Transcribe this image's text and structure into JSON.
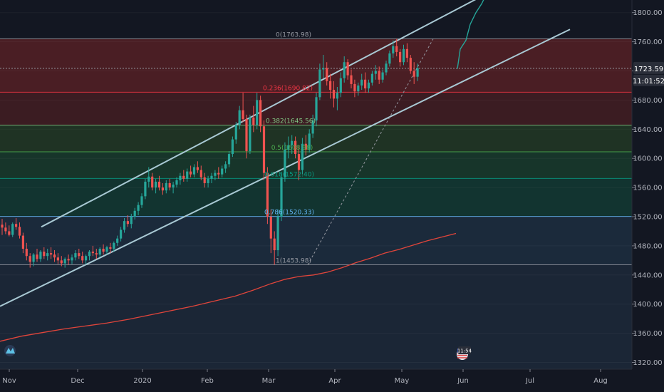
{
  "chart_data": {
    "type": "candlestick",
    "y_axis": {
      "range": [
        1310,
        1815
      ],
      "ticks": [
        1320,
        1360,
        1400,
        1440,
        1480,
        1520,
        1560,
        1600,
        1640,
        1680,
        1720,
        1760,
        1800
      ],
      "tick_labels": [
        "1320.00",
        "1360.00",
        "1400.00",
        "1440.00",
        "1480.00",
        "1520.00",
        "1560.00",
        "1600.00",
        "1640.00",
        "1680.00",
        "1720.00",
        "1760.00",
        "1800.00"
      ]
    },
    "x_axis": {
      "labels": [
        "Nov",
        "Dec",
        "2020",
        "Feb",
        "Mar",
        "Apr",
        "May",
        "Jun",
        "Jul",
        "Aug"
      ]
    },
    "fib_levels": [
      {
        "ratio": "0",
        "price": 1763.98,
        "label": "0(1763.98)",
        "color": "#9598a1"
      },
      {
        "ratio": "0.236",
        "price": 1690.82,
        "label": "0.236(1690.82)",
        "color": "#f23645"
      },
      {
        "ratio": "0.382",
        "price": 1645.56,
        "label": "0.382(1645.56)",
        "color": "#81c784"
      },
      {
        "ratio": "0.5",
        "price": 1608.98,
        "label": "0.5(1608.98)",
        "color": "#4caf50"
      },
      {
        "ratio": "0.618",
        "price": 1572.4,
        "label": "0.618(1572.40)",
        "color": "#089981"
      },
      {
        "ratio": "0.786",
        "price": 1520.33,
        "label": "0.786(1520.33)",
        "color": "#64b5f6"
      },
      {
        "ratio": "1",
        "price": 1453.98,
        "label": "1(1453.98)",
        "color": "#9598a1"
      }
    ],
    "current_price": {
      "label": "1723.59",
      "countdown": "11:01:52",
      "value": 1723.59
    },
    "ohlc": [
      [
        1509,
        1517,
        1495,
        1505
      ],
      [
        1505,
        1512,
        1496,
        1500
      ],
      [
        1500,
        1508,
        1493,
        1495
      ],
      [
        1495,
        1512,
        1492,
        1510
      ],
      [
        1510,
        1518,
        1502,
        1506
      ],
      [
        1506,
        1512,
        1490,
        1494
      ],
      [
        1494,
        1498,
        1470,
        1476
      ],
      [
        1476,
        1484,
        1460,
        1466
      ],
      [
        1466,
        1470,
        1450,
        1458
      ],
      [
        1458,
        1470,
        1452,
        1468
      ],
      [
        1468,
        1476,
        1458,
        1462
      ],
      [
        1462,
        1474,
        1458,
        1472
      ],
      [
        1472,
        1478,
        1462,
        1466
      ],
      [
        1466,
        1476,
        1460,
        1470
      ],
      [
        1470,
        1478,
        1462,
        1468
      ],
      [
        1468,
        1474,
        1458,
        1464
      ],
      [
        1464,
        1470,
        1455,
        1460
      ],
      [
        1460,
        1466,
        1452,
        1456
      ],
      [
        1456,
        1464,
        1450,
        1462
      ],
      [
        1462,
        1468,
        1454,
        1460
      ],
      [
        1460,
        1468,
        1455,
        1464
      ],
      [
        1464,
        1474,
        1460,
        1470
      ],
      [
        1470,
        1476,
        1462,
        1466
      ],
      [
        1466,
        1472,
        1456,
        1460
      ],
      [
        1460,
        1468,
        1455,
        1466
      ],
      [
        1466,
        1474,
        1460,
        1472
      ],
      [
        1472,
        1480,
        1466,
        1470
      ],
      [
        1470,
        1476,
        1462,
        1468
      ],
      [
        1468,
        1478,
        1464,
        1476
      ],
      [
        1476,
        1482,
        1468,
        1472
      ],
      [
        1472,
        1480,
        1468,
        1478
      ],
      [
        1478,
        1484,
        1470,
        1476
      ],
      [
        1476,
        1486,
        1472,
        1484
      ],
      [
        1484,
        1494,
        1480,
        1490
      ],
      [
        1490,
        1506,
        1486,
        1502
      ],
      [
        1502,
        1518,
        1498,
        1514
      ],
      [
        1514,
        1522,
        1506,
        1510
      ],
      [
        1510,
        1524,
        1504,
        1520
      ],
      [
        1520,
        1532,
        1516,
        1528
      ],
      [
        1528,
        1540,
        1522,
        1536
      ],
      [
        1536,
        1552,
        1532,
        1548
      ],
      [
        1548,
        1572,
        1544,
        1568
      ],
      [
        1568,
        1588,
        1560,
        1575
      ],
      [
        1575,
        1580,
        1556,
        1560
      ],
      [
        1560,
        1572,
        1552,
        1568
      ],
      [
        1568,
        1576,
        1556,
        1560
      ],
      [
        1560,
        1566,
        1550,
        1556
      ],
      [
        1556,
        1570,
        1552,
        1566
      ],
      [
        1566,
        1572,
        1556,
        1560
      ],
      [
        1560,
        1568,
        1552,
        1564
      ],
      [
        1564,
        1574,
        1560,
        1570
      ],
      [
        1570,
        1580,
        1564,
        1576
      ],
      [
        1576,
        1584,
        1568,
        1572
      ],
      [
        1572,
        1586,
        1568,
        1582
      ],
      [
        1582,
        1590,
        1574,
        1578
      ],
      [
        1578,
        1592,
        1574,
        1588
      ],
      [
        1588,
        1596,
        1580,
        1584
      ],
      [
        1584,
        1590,
        1570,
        1574
      ],
      [
        1574,
        1580,
        1560,
        1566
      ],
      [
        1566,
        1576,
        1560,
        1572
      ],
      [
        1572,
        1580,
        1566,
        1576
      ],
      [
        1576,
        1584,
        1570,
        1580
      ],
      [
        1580,
        1588,
        1572,
        1578
      ],
      [
        1578,
        1590,
        1574,
        1586
      ],
      [
        1586,
        1596,
        1580,
        1592
      ],
      [
        1592,
        1610,
        1588,
        1606
      ],
      [
        1606,
        1630,
        1602,
        1626
      ],
      [
        1626,
        1650,
        1620,
        1646
      ],
      [
        1646,
        1672,
        1640,
        1666
      ],
      [
        1666,
        1690,
        1650,
        1654
      ],
      [
        1654,
        1660,
        1600,
        1610
      ],
      [
        1610,
        1660,
        1606,
        1656
      ],
      [
        1656,
        1672,
        1636,
        1646
      ],
      [
        1646,
        1690,
        1640,
        1680
      ],
      [
        1680,
        1686,
        1636,
        1644
      ],
      [
        1644,
        1652,
        1570,
        1580
      ],
      [
        1580,
        1588,
        1510,
        1520
      ],
      [
        1520,
        1530,
        1470,
        1490
      ],
      [
        1490,
        1500,
        1454,
        1474
      ],
      [
        1474,
        1530,
        1466,
        1520
      ],
      [
        1520,
        1580,
        1514,
        1574
      ],
      [
        1574,
        1622,
        1568,
        1612
      ],
      [
        1612,
        1630,
        1600,
        1618
      ],
      [
        1618,
        1632,
        1606,
        1624
      ],
      [
        1624,
        1630,
        1600,
        1606
      ],
      [
        1606,
        1618,
        1570,
        1584
      ],
      [
        1584,
        1628,
        1578,
        1620
      ],
      [
        1620,
        1632,
        1604,
        1612
      ],
      [
        1612,
        1640,
        1608,
        1634
      ],
      [
        1634,
        1660,
        1628,
        1652
      ],
      [
        1652,
        1690,
        1644,
        1684
      ],
      [
        1684,
        1730,
        1680,
        1722
      ],
      [
        1722,
        1742,
        1710,
        1724
      ],
      [
        1724,
        1732,
        1700,
        1706
      ],
      [
        1706,
        1716,
        1682,
        1694
      ],
      [
        1694,
        1706,
        1670,
        1682
      ],
      [
        1682,
        1698,
        1666,
        1690
      ],
      [
        1690,
        1718,
        1684,
        1710
      ],
      [
        1710,
        1740,
        1704,
        1732
      ],
      [
        1732,
        1736,
        1708,
        1714
      ],
      [
        1714,
        1722,
        1696,
        1702
      ],
      [
        1702,
        1708,
        1684,
        1692
      ],
      [
        1692,
        1704,
        1686,
        1700
      ],
      [
        1700,
        1716,
        1694,
        1708
      ],
      [
        1708,
        1718,
        1690,
        1696
      ],
      [
        1696,
        1708,
        1690,
        1704
      ],
      [
        1704,
        1720,
        1700,
        1716
      ],
      [
        1716,
        1728,
        1708,
        1720
      ],
      [
        1720,
        1726,
        1702,
        1708
      ],
      [
        1708,
        1722,
        1704,
        1718
      ],
      [
        1718,
        1734,
        1714,
        1730
      ],
      [
        1730,
        1748,
        1726,
        1744
      ],
      [
        1744,
        1762,
        1738,
        1754
      ],
      [
        1754,
        1764,
        1740,
        1746
      ],
      [
        1746,
        1750,
        1726,
        1732
      ],
      [
        1732,
        1756,
        1728,
        1750
      ],
      [
        1750,
        1758,
        1732,
        1738
      ],
      [
        1738,
        1742,
        1716,
        1720
      ],
      [
        1720,
        1732,
        1702,
        1712
      ],
      [
        1712,
        1730,
        1706,
        1724
      ]
    ],
    "ma_line": [
      [
        0,
        1349
      ],
      [
        30,
        1356
      ],
      [
        60,
        1361
      ],
      [
        90,
        1366
      ],
      [
        120,
        1370
      ],
      [
        150,
        1374
      ],
      [
        180,
        1379
      ],
      [
        210,
        1385
      ],
      [
        240,
        1391
      ],
      [
        270,
        1397
      ],
      [
        300,
        1404
      ],
      [
        330,
        1411
      ],
      [
        355,
        1419
      ],
      [
        380,
        1428
      ],
      [
        400,
        1434
      ],
      [
        420,
        1438
      ],
      [
        440,
        1440
      ],
      [
        460,
        1444
      ],
      [
        480,
        1450
      ],
      [
        500,
        1457
      ],
      [
        520,
        1463
      ],
      [
        540,
        1470
      ],
      [
        560,
        1475
      ],
      [
        580,
        1481
      ],
      [
        600,
        1487
      ],
      [
        620,
        1492
      ],
      [
        640,
        1497
      ]
    ],
    "projection": [
      [
        642,
        1723
      ],
      [
        646,
        1750
      ],
      [
        654,
        1762
      ],
      [
        660,
        1784
      ],
      [
        668,
        1800
      ],
      [
        676,
        1812
      ],
      [
        683,
        1826
      ]
    ],
    "channel": {
      "upper": [
        [
          58,
          1506
        ],
        [
          683,
          1826
        ]
      ],
      "lower": [
        [
          0,
          1397
        ],
        [
          800,
          1777
        ]
      ]
    },
    "diagonal": [
      [
        432,
        1453.98
      ],
      [
        608,
        1763.98
      ]
    ],
    "date_range_label": "11:54"
  }
}
